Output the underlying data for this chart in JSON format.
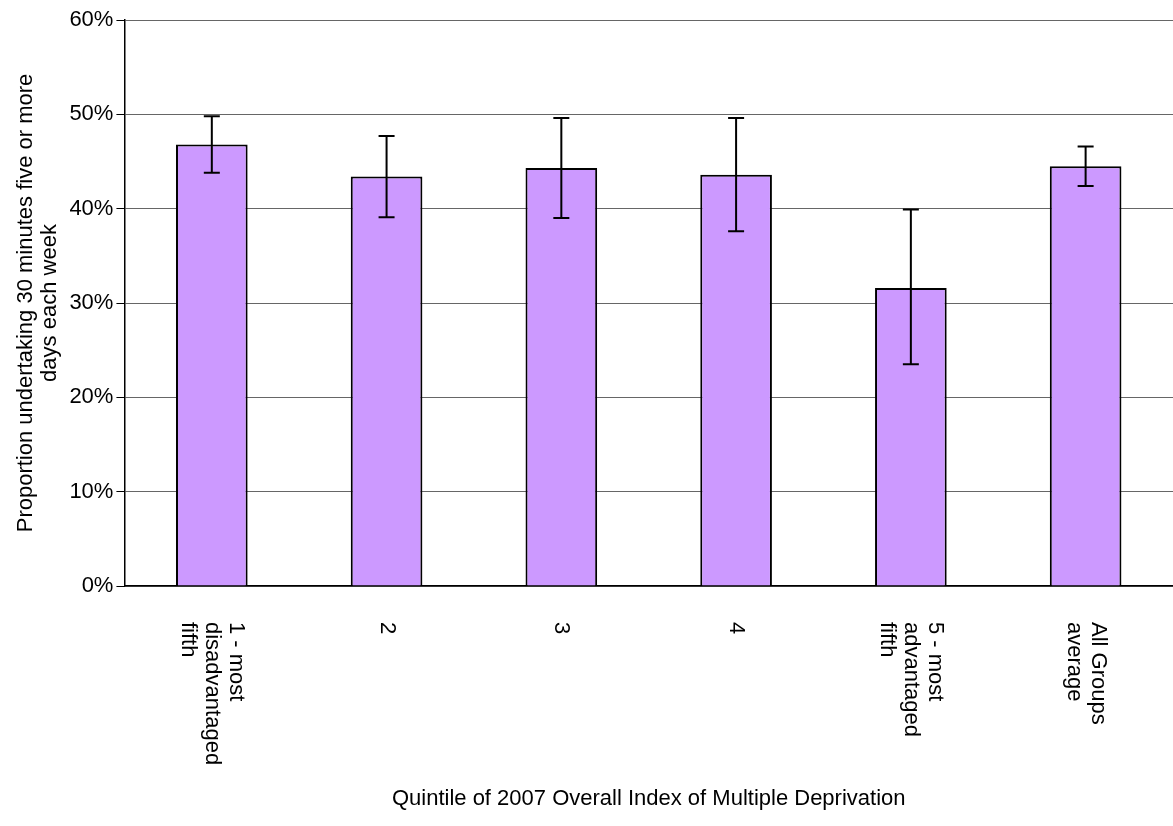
{
  "chart_data": {
    "type": "bar",
    "xlabel": "Quintile of 2007 Overall Index of Multiple Deprivation",
    "ylabel": "Proportion undertaking 30 minutes five or more days each week",
    "categories": [
      "1 - most disadvantaged fifth",
      "2",
      "3",
      "4",
      "5 - most advantaged fifth",
      "All Groups average"
    ],
    "values": [
      46.8,
      43.4,
      44.3,
      43.6,
      31.6,
      44.5
    ],
    "errors": [
      [
        43.8,
        49.8
      ],
      [
        39.1,
        47.7
      ],
      [
        39.0,
        49.6
      ],
      [
        37.6,
        49.6
      ],
      [
        23.5,
        39.9
      ],
      [
        42.4,
        46.6
      ]
    ],
    "color": "#cc99ff",
    "ylim": [
      0,
      60
    ],
    "yticks": [
      {
        "value": 0,
        "label": "0%"
      },
      {
        "value": 10,
        "label": "10%"
      },
      {
        "value": 20,
        "label": "20%"
      },
      {
        "value": 30,
        "label": "30%"
      },
      {
        "value": 40,
        "label": "40%"
      },
      {
        "value": 50,
        "label": "50%"
      },
      {
        "value": 60,
        "label": "60%"
      }
    ],
    "grid": "y",
    "legend": false
  }
}
